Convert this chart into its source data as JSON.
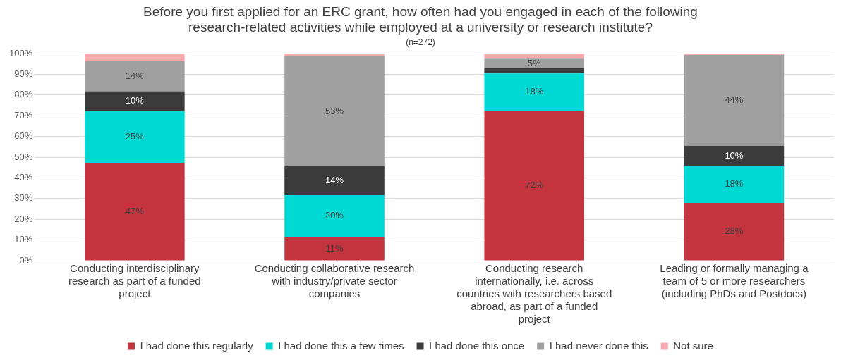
{
  "chart_data": {
    "type": "bar",
    "stacked": true,
    "title": "Before you first applied for an ERC grant, how often had you engaged in each of the following research-related activities while employed at a university or research institute?",
    "subtitle": "(n=272)",
    "categories": [
      "Conducting interdisciplinary research as part of a funded project",
      "Conducting collaborative research with industry/private sector companies",
      "Conducting research internationally, i.e. across countries with researchers based abroad, as part of a funded project",
      "Leading or formally managing a team of 5 or more researchers (including PhDs and Postdocs)"
    ],
    "series": [
      {
        "name": "I had done this regularly",
        "color": "#c4343f",
        "values": [
          47.3,
          11.4,
          72.4,
          27.9
        ],
        "value_labels": [
          "47%",
          "11%",
          "72%",
          "28%"
        ]
      },
      {
        "name": "I had done this a few times",
        "color": "#00d9d3",
        "values": [
          24.9,
          20.2,
          18,
          18
        ],
        "value_labels": [
          "25%",
          "20%",
          "18%",
          "18%"
        ]
      },
      {
        "name": "I had done this once",
        "color": "#3b3b3b",
        "values": [
          9.6,
          14,
          2.6,
          9.6
        ],
        "value_labels": [
          "10%",
          "14%",
          null,
          "10%"
        ]
      },
      {
        "name": "I had never done this",
        "color": "#a0a0a0",
        "values": [
          14.5,
          53,
          4.5,
          43.8
        ],
        "value_labels": [
          "14%",
          "53%",
          "5%",
          "44%"
        ]
      },
      {
        "name": "Not sure",
        "color": "#f7a9ae",
        "values": [
          3.7,
          1.4,
          2.5,
          0.7
        ],
        "value_labels": [
          null,
          null,
          null,
          null
        ]
      }
    ],
    "ylim": [
      0,
      100
    ],
    "yticks": [
      {
        "value": 0,
        "label": "0%"
      },
      {
        "value": 10,
        "label": "10%"
      },
      {
        "value": 20,
        "label": "20%"
      },
      {
        "value": 30,
        "label": "30%"
      },
      {
        "value": 40,
        "label": "40%"
      },
      {
        "value": 50,
        "label": "50%"
      },
      {
        "value": 60,
        "label": "60%"
      },
      {
        "value": 70,
        "label": "70%"
      },
      {
        "value": 80,
        "label": "80%"
      },
      {
        "value": 90,
        "label": "90%"
      },
      {
        "value": 100,
        "label": "100%"
      }
    ],
    "grid": "y",
    "legend": "bottom"
  }
}
